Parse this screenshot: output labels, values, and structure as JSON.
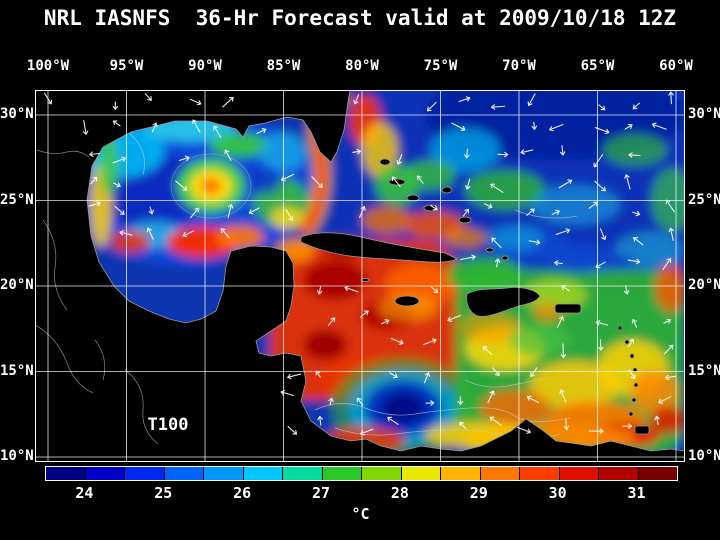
{
  "title": "NRL IASNFS  36-Hr Forecast valid at 2009/10/18 12Z",
  "axes": {
    "lon_labels": [
      "100°W",
      "95°W",
      "90°W",
      "85°W",
      "80°W",
      "75°W",
      "70°W",
      "65°W",
      "60°W"
    ],
    "lat_labels": [
      "30°N",
      "25°N",
      "20°N",
      "15°N",
      "10°N"
    ]
  },
  "map": {
    "field_label": "T100"
  },
  "colorbar": {
    "tick_labels": [
      "24",
      "25",
      "26",
      "27",
      "28",
      "29",
      "30",
      "31"
    ],
    "unit": "°C",
    "colors": [
      "#000080",
      "#0000c8",
      "#0028f0",
      "#0064ff",
      "#0098ff",
      "#00c8ff",
      "#00dca0",
      "#28c828",
      "#80d800",
      "#e8e800",
      "#ffb400",
      "#ff7800",
      "#ff3c00",
      "#e01000",
      "#b00000",
      "#780000"
    ]
  },
  "chart_data": {
    "type": "heatmap",
    "title": "NRL IASNFS 36-Hr Forecast valid at 2009/10/18 12Z",
    "variable": "T100",
    "unit": "°C",
    "colorbar_ticks": [
      24,
      25,
      26,
      27,
      28,
      29,
      30,
      31
    ],
    "colorbar_range": [
      23.5,
      31.5
    ],
    "x_ticks": [
      "100°W",
      "95°W",
      "90°W",
      "85°W",
      "80°W",
      "75°W",
      "70°W",
      "65°W",
      "60°W"
    ],
    "y_ticks": [
      "30°N",
      "25°N",
      "20°N",
      "15°N",
      "10°N"
    ],
    "legend_position": "bottom",
    "grid": true
  }
}
